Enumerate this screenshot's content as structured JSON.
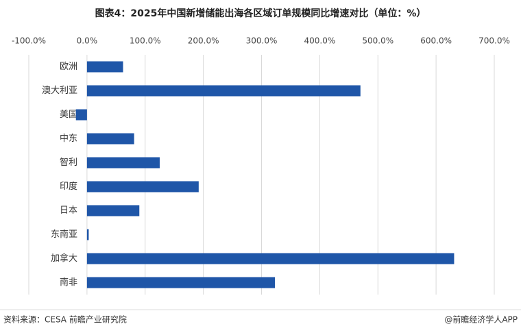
{
  "chart_data": {
    "type": "barh",
    "title": "图表4：2025年中国新增储能出海各区域订单规模同比增速对比（单位：%）",
    "categories": [
      "欧洲",
      "澳大利亚",
      "美国",
      "中东",
      "智利",
      "印度",
      "日本",
      "东南亚",
      "加拿大",
      "南非"
    ],
    "values": [
      62,
      470,
      -19,
      81,
      125,
      192,
      90,
      3,
      631,
      323
    ],
    "color": "#1f56a8",
    "xlim": [
      -100,
      700
    ],
    "xticks": [
      {
        "value": -100,
        "label": "-100.0%"
      },
      {
        "value": 0,
        "label": "0.0%"
      },
      {
        "value": 100,
        "label": "100.0%"
      },
      {
        "value": 200,
        "label": "200.0%"
      },
      {
        "value": 300,
        "label": "300.0%"
      },
      {
        "value": 400,
        "label": "400.0%"
      },
      {
        "value": 500,
        "label": "500.0%"
      },
      {
        "value": 600,
        "label": "600.0%"
      },
      {
        "value": 700,
        "label": "700.0%"
      }
    ],
    "grid": true,
    "source": "资料来源：CESA  前瞻产业研究院",
    "credit": "@前瞻经济学人APP"
  }
}
